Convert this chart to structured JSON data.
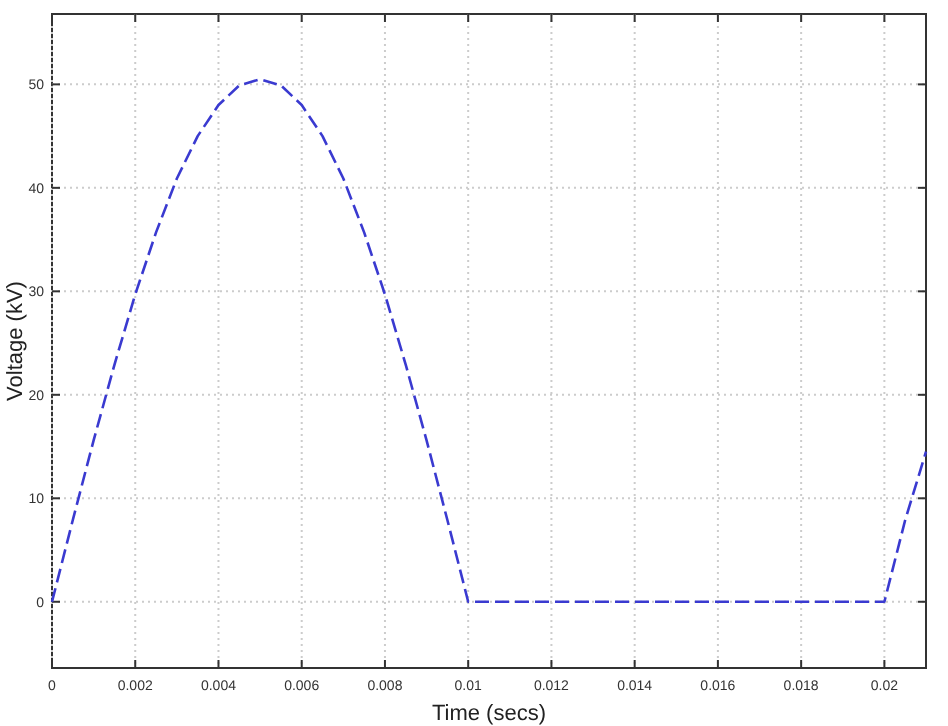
{
  "chart_data": {
    "type": "line",
    "xlabel": "Time (secs)",
    "ylabel": "Voltage (kV)",
    "x": [
      0,
      0.0005,
      0.001,
      0.0015,
      0.002,
      0.0025,
      0.003,
      0.0035,
      0.004,
      0.0045,
      0.005,
      0.0055,
      0.006,
      0.0065,
      0.007,
      0.0075,
      0.008,
      0.0085,
      0.009,
      0.0095,
      0.01,
      0.0125,
      0.015,
      0.0175,
      0.02,
      0.0205,
      0.021
    ],
    "series": [
      {
        "color": "#3a3ad0",
        "values": [
          0,
          7.9,
          15.6,
          22.9,
          29.7,
          35.7,
          40.9,
          45.0,
          48.0,
          49.9,
          50.5,
          49.9,
          48.0,
          45.0,
          40.9,
          35.7,
          29.7,
          22.9,
          15.6,
          7.9,
          0,
          0,
          0,
          0,
          0,
          7.9,
          14.5
        ]
      }
    ],
    "xlim": [
      0,
      0.021
    ],
    "ylim": [
      -6.4,
      56.8
    ],
    "xticks": [
      0,
      0.002,
      0.004,
      0.006,
      0.008,
      0.01,
      0.012,
      0.014,
      0.016,
      0.018,
      0.02
    ],
    "yticks": [
      0,
      10,
      20,
      30,
      40,
      50
    ],
    "grid": true,
    "line_style": "dashed"
  }
}
